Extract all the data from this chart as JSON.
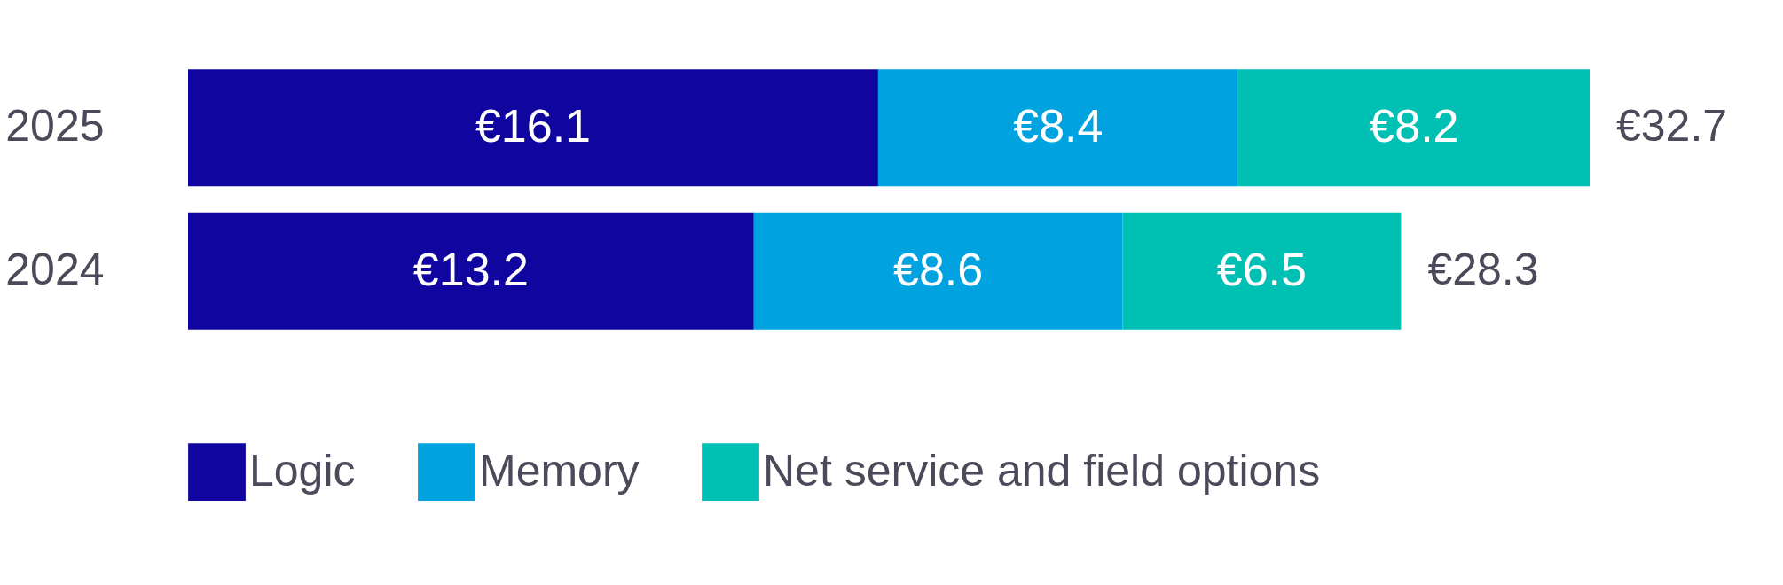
{
  "chart_data": {
    "type": "bar",
    "orientation": "horizontal",
    "stacked": true,
    "categories": [
      "2025",
      "2024"
    ],
    "series": [
      {
        "name": "Logic",
        "color": "#10069f",
        "values": [
          16.1,
          13.2
        ],
        "value_labels": [
          "€16.1",
          "€13.2"
        ]
      },
      {
        "name": "Memory",
        "color": "#00a3e0",
        "values": [
          8.4,
          8.6
        ],
        "value_labels": [
          "€8.4",
          "€8.6"
        ]
      },
      {
        "name": "Net service and field options",
        "color": "#00bfb3",
        "values": [
          8.2,
          6.5
        ],
        "value_labels": [
          "€8.2",
          "€6.5"
        ]
      }
    ],
    "totals": [
      "€32.7",
      "€28.3"
    ],
    "legend": "bottom"
  }
}
